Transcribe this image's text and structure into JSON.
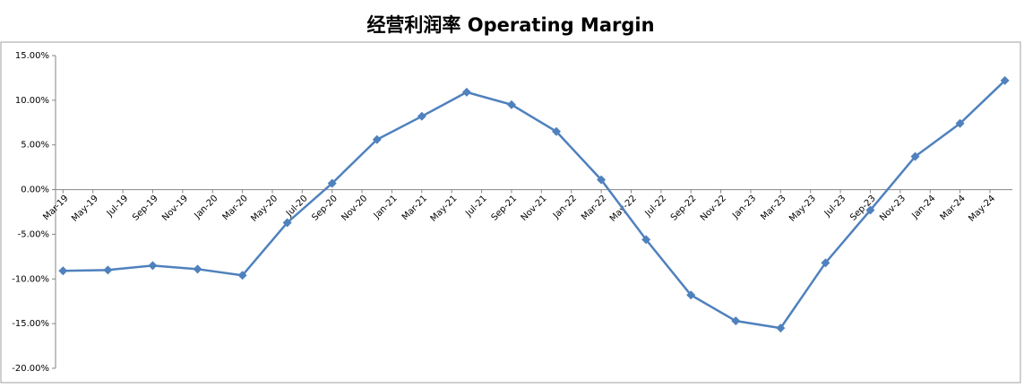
{
  "chart_data": {
    "type": "line",
    "title": "经营利润率 Operating Margin",
    "x": [
      "2019-03",
      "2019-06",
      "2019-09",
      "2019-12",
      "2020-03",
      "2020-06",
      "2020-09",
      "2020-12",
      "2021-03",
      "2021-06",
      "2021-09",
      "2021-12",
      "2022-03",
      "2022-06",
      "2022-09",
      "2022-12",
      "2023-03",
      "2023-06",
      "2023-09",
      "2023-12",
      "2024-03",
      "2024-06"
    ],
    "series": [
      {
        "name": "Operating Margin",
        "color": "#4f81bd",
        "values": [
          -9.1,
          -9.0,
          -8.5,
          -8.9,
          -9.6,
          -3.7,
          0.7,
          5.6,
          8.2,
          10.9,
          9.5,
          6.5,
          1.1,
          -5.6,
          -11.8,
          -14.7,
          -15.5,
          -8.2,
          -2.3,
          3.7,
          7.4,
          12.2
        ]
      }
    ],
    "xlim": [
      "2019-03",
      "2024-06"
    ],
    "xticks": [
      {
        "value": "2019-03",
        "label": "Mar-19"
      },
      {
        "value": "2019-05",
        "label": "May-19"
      },
      {
        "value": "2019-07",
        "label": "Jul-19"
      },
      {
        "value": "2019-09",
        "label": "Sep-19"
      },
      {
        "value": "2019-11",
        "label": "Nov-19"
      },
      {
        "value": "2020-01",
        "label": "Jan-20"
      },
      {
        "value": "2020-03",
        "label": "Mar-20"
      },
      {
        "value": "2020-05",
        "label": "May-20"
      },
      {
        "value": "2020-07",
        "label": "Jul-20"
      },
      {
        "value": "2020-09",
        "label": "Sep-20"
      },
      {
        "value": "2020-11",
        "label": "Nov-20"
      },
      {
        "value": "2021-01",
        "label": "Jan-21"
      },
      {
        "value": "2021-03",
        "label": "Mar-21"
      },
      {
        "value": "2021-05",
        "label": "May-21"
      },
      {
        "value": "2021-07",
        "label": "Jul-21"
      },
      {
        "value": "2021-09",
        "label": "Sep-21"
      },
      {
        "value": "2021-11",
        "label": "Nov-21"
      },
      {
        "value": "2022-01",
        "label": "Jan-22"
      },
      {
        "value": "2022-03",
        "label": "Mar-22"
      },
      {
        "value": "2022-05",
        "label": "May-22"
      },
      {
        "value": "2022-07",
        "label": "Jul-22"
      },
      {
        "value": "2022-09",
        "label": "Sep-22"
      },
      {
        "value": "2022-11",
        "label": "Nov-22"
      },
      {
        "value": "2023-01",
        "label": "Jan-23"
      },
      {
        "value": "2023-03",
        "label": "Mar-23"
      },
      {
        "value": "2023-05",
        "label": "May-23"
      },
      {
        "value": "2023-07",
        "label": "Jul-23"
      },
      {
        "value": "2023-09",
        "label": "Sep-23"
      },
      {
        "value": "2023-11",
        "label": "Nov-23"
      },
      {
        "value": "2024-01",
        "label": "Jan-24"
      },
      {
        "value": "2024-03",
        "label": "Mar-24"
      },
      {
        "value": "2024-05",
        "label": "May-24"
      }
    ],
    "ylim": [
      -20,
      15
    ],
    "yticks": [
      {
        "value": -20,
        "label": "-20.00%"
      },
      {
        "value": -15,
        "label": "-15.00%"
      },
      {
        "value": -10,
        "label": "-10.00%"
      },
      {
        "value": -5,
        "label": "-5.00%"
      },
      {
        "value": 0,
        "label": "0.00%"
      },
      {
        "value": 5,
        "label": "5.00%"
      },
      {
        "value": 10,
        "label": "10.00%"
      },
      {
        "value": 15,
        "label": "15.00%"
      }
    ]
  }
}
